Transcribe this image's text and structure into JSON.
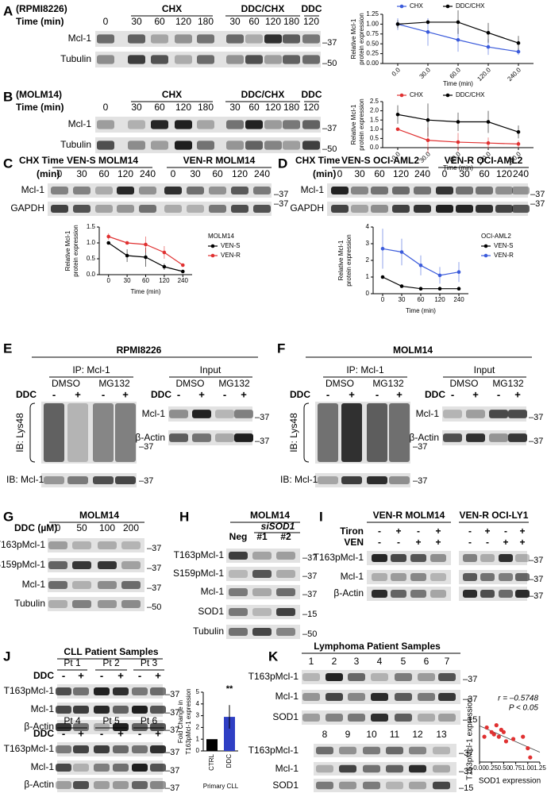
{
  "A": {
    "letter": "A",
    "cell_line": "(RPMI8226)",
    "time_label": "Time (min)",
    "groups": [
      "CHX",
      "DDC/CHX",
      "DDC"
    ],
    "times": [
      "0",
      "30",
      "60",
      "120",
      "180",
      "30",
      "60",
      "120",
      "180",
      "120"
    ],
    "rows": [
      "Mcl-1",
      "Tubulin"
    ],
    "markers": [
      "–37",
      "–50"
    ]
  },
  "B": {
    "letter": "B",
    "cell_line": "(MOLM14)",
    "time_label": "Time (min)",
    "groups": [
      "CHX",
      "DDC/CHX",
      "DDC"
    ],
    "times": [
      "0",
      "30",
      "60",
      "120",
      "180",
      "30",
      "60",
      "120",
      "180",
      "120"
    ],
    "rows": [
      "Mcl-1",
      "Tubulin"
    ],
    "markers": [
      "–37",
      "–50"
    ]
  },
  "C": {
    "letter": "C",
    "time_label": [
      "CHX Time",
      "(min)"
    ],
    "groups": [
      "VEN-S MOLM14",
      "VEN-R MOLM14"
    ],
    "times": [
      "0",
      "30",
      "60",
      "120",
      "240",
      "0",
      "30",
      "60",
      "120",
      "240"
    ],
    "rows": [
      "Mcl-1",
      "GAPDH"
    ],
    "markers": [
      "–37",
      "–37"
    ]
  },
  "D": {
    "letter": "D",
    "time_label": [
      "CHX Time",
      "(min)"
    ],
    "groups": [
      "VEN-S OCI-AML2",
      "VEN-R OCI-AML2"
    ],
    "times": [
      "0",
      "30",
      "60",
      "120",
      "240",
      "0",
      "30",
      "60",
      "120",
      "240"
    ],
    "rows": [
      "Mcl-1",
      "GAPDH"
    ],
    "markers": [
      "–37",
      "–37"
    ]
  },
  "E": {
    "letter": "E",
    "title": "RPMI8226",
    "ip": "IP: Mcl-1",
    "treatments": [
      "DMSO",
      "MG132"
    ],
    "ddc": "DDC",
    "signs": [
      "-",
      "+",
      "-",
      "+"
    ],
    "ib_lys": "IB: Lys48",
    "ib_mcl": "IB: Mcl-1",
    "ip_markers": [
      "–37",
      "–37"
    ],
    "input": "Input",
    "input_treatments": [
      "DMSO",
      "MG132"
    ],
    "input_ddc": "DDC",
    "input_signs": [
      "-",
      "+",
      "-",
      "+"
    ],
    "input_rows": [
      "Mcl-1",
      "β-Actin"
    ],
    "input_markers": [
      "–37",
      "–37"
    ]
  },
  "F": {
    "letter": "F",
    "title": "MOLM14",
    "ip": "IP: Mcl-1",
    "treatments": [
      "DMSO",
      "MG132"
    ],
    "ddc": "DDC",
    "signs": [
      "-",
      "+",
      "-",
      "+"
    ],
    "ib_lys": "IB: Lys48",
    "ib_mcl": "IB: Mcl-1",
    "ip_markers": [
      "–37",
      "–37"
    ],
    "input": "Input",
    "input_treatments": [
      "DMSO",
      "MG132"
    ],
    "input_ddc": "DDC",
    "input_signs": [
      "-",
      "+",
      "-",
      "+"
    ],
    "input_rows": [
      "Mcl-1",
      "β-Actin"
    ],
    "input_markers": [
      "–37",
      "–37"
    ]
  },
  "G": {
    "letter": "G",
    "title": "MOLM14",
    "dose_label": "DDC (µM)",
    "doses": [
      "0",
      "50",
      "100",
      "200"
    ],
    "rows": [
      "T163pMcl-1",
      "S159pMcl-1",
      "Mcl-1",
      "Tubulin"
    ],
    "markers": [
      "–37",
      "–37",
      "–37",
      "–50"
    ]
  },
  "H": {
    "letter": "H",
    "title": "MOLM14",
    "sirna": "siSOD1",
    "lanes": [
      "Neg",
      "#1",
      "#2"
    ],
    "rows": [
      "T163pMcl-1",
      "S159pMcl-1",
      "Mcl-1",
      "SOD1",
      "Tubulin"
    ],
    "markers": [
      "–37",
      "–37",
      "–37",
      "–15",
      "–50"
    ]
  },
  "I": {
    "letter": "I",
    "groups": [
      "VEN-R MOLM14",
      "VEN-R OCI-LY1"
    ],
    "tiron_label": "Tiron",
    "ven_label": "VEN",
    "tiron": [
      "-",
      "+",
      "-",
      "+",
      "-",
      "+",
      "-",
      "+"
    ],
    "ven": [
      "-",
      "-",
      "+",
      "+",
      "-",
      "-",
      "+",
      "+"
    ],
    "rows": [
      "T163pMcl-1",
      "Mcl-1",
      "β-Actin"
    ],
    "markers": [
      "–37",
      "–37",
      "–37"
    ]
  },
  "J": {
    "letter": "J",
    "title": "CLL Patient Samples",
    "patients_top": [
      "Pt 1",
      "Pt 2",
      "Pt 3"
    ],
    "patients_bottom": [
      "Pt 4",
      "Pt 5",
      "Pt 6"
    ],
    "ddc_labels": [
      "DDC",
      "DDC"
    ],
    "signs_top": [
      "-",
      "+",
      "-",
      "+",
      "-",
      "+"
    ],
    "signs_bottom": [
      "-",
      "+",
      "-",
      "+",
      "-",
      "+"
    ],
    "rows_top": [
      "T163pMcl-1",
      "Mcl-1",
      "β-Actin"
    ],
    "rows_bottom": [
      "T163pMcl-1",
      "Mcl-1",
      "β-Actin"
    ],
    "markers_top": [
      "–37",
      "–37",
      "–37"
    ],
    "markers_bottom": [
      "–37",
      "–37",
      "–37"
    ]
  },
  "K": {
    "letter": "K",
    "title": "Lymphoma Patient Samples",
    "lanes_top": [
      "1",
      "2",
      "3",
      "4",
      "5",
      "6",
      "7"
    ],
    "lanes_bottom": [
      "8",
      "9",
      "10",
      "11",
      "12",
      "13"
    ],
    "rows_top": [
      "T163pMcl-1",
      "Mcl-1",
      "SOD1"
    ],
    "rows_bottom": [
      "T163pMcl-1",
      "Mcl-1",
      "SOD1"
    ],
    "markers_top": [
      "–37",
      "–37",
      "–15"
    ],
    "markers_bottom": [
      "–37",
      "–37",
      "–15"
    ]
  },
  "chart_data": [
    {
      "type": "line",
      "y_label": [
        "Relative Mcl-1",
        "protein expression"
      ],
      "x_label": "Time (min)",
      "categories": [
        "0.0",
        "30.0",
        "60.0",
        "120.0",
        "240.0"
      ],
      "ylim": [
        0,
        1.25
      ],
      "yticks": [
        {
          "value": 0,
          "label": "0.00"
        },
        {
          "value": 0.25,
          "label": "0.25"
        },
        {
          "value": 0.5,
          "label": "0.50"
        },
        {
          "value": 0.75,
          "label": "0.75"
        },
        {
          "value": 1,
          "label": "1.00"
        },
        {
          "value": 1.25,
          "label": "1.25"
        }
      ],
      "series": [
        {
          "name": "CHX",
          "color": "#3b5bdb",
          "values": [
            1.0,
            0.8,
            0.6,
            0.42,
            0.3
          ],
          "errors": [
            0.15,
            0.35,
            0.3,
            0.2,
            0.08
          ]
        },
        {
          "name": "DDC/CHX",
          "color": "#000000",
          "values": [
            1.0,
            1.05,
            1.05,
            0.78,
            0.52
          ],
          "errors": [
            0.1,
            0.05,
            0.3,
            0.25,
            0.18
          ]
        }
      ]
    },
    {
      "type": "line",
      "y_label": [
        "Relative Mcl-1",
        "protein expression"
      ],
      "x_label": "Time (min)",
      "categories": [
        "0.0",
        "30.0",
        "60.0",
        "120.0",
        "240.0"
      ],
      "ylim": [
        0,
        2.5
      ],
      "yticks": [
        {
          "value": 0,
          "label": "0.0"
        },
        0.5,
        {
          "value": 1,
          "label": "1.0"
        },
        1.5,
        {
          "value": 2,
          "label": "2.0"
        },
        2.5
      ],
      "series": [
        {
          "name": "CHX",
          "color": "#e03131",
          "values": [
            1.0,
            0.4,
            0.3,
            0.25,
            0.2
          ],
          "errors": [
            0.05,
            0.7,
            0.5,
            0.3,
            0.2
          ]
        },
        {
          "name": "DDC/CHX",
          "color": "#000000",
          "values": [
            1.8,
            1.5,
            1.4,
            1.4,
            0.85
          ],
          "errors": [
            0.5,
            0.9,
            0.5,
            0.6,
            0.35
          ]
        }
      ]
    },
    {
      "type": "line",
      "y_label": [
        "Relative Mcl-1",
        "protein expression"
      ],
      "x_label": "Time (min)",
      "categories": [
        "0",
        "30",
        "60",
        "120",
        "240"
      ],
      "ylim": [
        0,
        1.5
      ],
      "yticks": [
        {
          "value": 0,
          "label": "0.0"
        },
        0.5,
        {
          "value": 1,
          "label": "1.0"
        },
        1.5
      ],
      "legend_title": "MOLM14",
      "series": [
        {
          "name": "VEN-S",
          "color": "#000000",
          "values": [
            1.0,
            0.6,
            0.55,
            0.25,
            0.1
          ],
          "errors": [
            0.05,
            0.2,
            0.3,
            0.1,
            0.05
          ]
        },
        {
          "name": "VEN-R",
          "color": "#e03131",
          "values": [
            1.2,
            1.0,
            0.95,
            0.7,
            0.3
          ],
          "errors": [
            0.1,
            0.05,
            0.25,
            0.2,
            0.05
          ]
        }
      ]
    },
    {
      "type": "line",
      "y_label": [
        "Relative Mcl-1",
        "protein expression"
      ],
      "x_label": "Time (min)",
      "categories": [
        "0",
        "30",
        "60",
        "120",
        "240"
      ],
      "ylim": [
        0,
        4
      ],
      "yticks": [
        0,
        1,
        2,
        3,
        4
      ],
      "legend_title": "OCI-AML2",
      "series": [
        {
          "name": "VEN-S",
          "color": "#000000",
          "values": [
            1.0,
            0.45,
            0.3,
            0.3,
            0.3
          ],
          "errors": [
            0.05,
            0.1,
            0.05,
            0.05,
            0.05
          ]
        },
        {
          "name": "VEN-R",
          "color": "#3b5bdb",
          "values": [
            2.7,
            2.5,
            1.7,
            1.1,
            1.3
          ],
          "errors": [
            1.2,
            0.8,
            0.6,
            0.5,
            0.6
          ]
        }
      ]
    },
    {
      "type": "bar",
      "y_label": [
        "Fold Change in",
        "T163pMcl-1 expression"
      ],
      "x_label": "Primary CLL",
      "categories": [
        "CTRL",
        "DDC"
      ],
      "values": [
        1,
        2.9
      ],
      "errors": [
        0,
        1.0
      ],
      "colors": [
        "#000000",
        "#2f3fc4"
      ],
      "ylim": [
        0,
        5
      ],
      "yticks": [
        0,
        1,
        2,
        3,
        4,
        5
      ],
      "annotation": "**"
    },
    {
      "type": "scatter",
      "x_label": "SOD1 expression",
      "y_label": "T163pMcl-1 expression",
      "annotations": [
        "r = –0.5748",
        "P < 0.05"
      ],
      "color": "#e03131",
      "x": [
        0.1,
        0.15,
        0.25,
        0.3,
        0.35,
        0.4,
        0.45,
        0.5,
        0.55,
        0.7,
        0.9,
        1.0,
        1.05
      ],
      "y": [
        0.55,
        0.75,
        0.65,
        0.6,
        0.8,
        0.55,
        0.7,
        0.65,
        0.45,
        0.5,
        0.55,
        0.3,
        0.1
      ],
      "xlim": [
        0,
        1.25
      ],
      "xticks": [
        {
          "value": 0,
          "label": "0.00"
        },
        {
          "value": 0.25,
          "label": "0.25"
        },
        {
          "value": 0.5,
          "label": "0.50"
        },
        {
          "value": 0.75,
          "label": "0.75"
        },
        {
          "value": 1,
          "label": "1.00"
        },
        {
          "value": 1.25,
          "label": "1.25"
        }
      ],
      "ylim": [
        0,
        1
      ]
    }
  ]
}
